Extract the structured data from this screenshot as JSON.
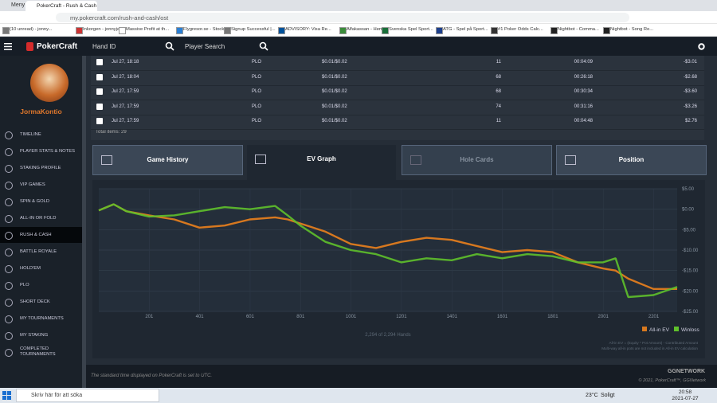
{
  "browser": {
    "menu": "Meny",
    "tab": "PokerCraft - Rush & Cash",
    "url": "my.pokercraft.com/rush-and-cash/ost",
    "bookmarks": [
      "(10 unread) - jonny...",
      "Inkorgen - jonnyjan...",
      "Massive Profit at th...",
      "Flygresor.se - Stock...",
      "Signup Successful |...",
      "ADVISORY: Visa Re...",
      "Alfakassan - Hem",
      "Svenska Spel Sport...",
      "ATG - Spel på Sport...",
      "#1 Poker Odds Calc...",
      "Nightbot - Comma...",
      "Nightbot - Song Re..."
    ]
  },
  "app": {
    "brand": "PokerCraft",
    "hand_id": "Hand ID",
    "player_search": "Player Search",
    "username": "JormaKontio",
    "menu": [
      "TIMELINE",
      "PLAYER STATS & NOTES",
      "STAKING PROFILE",
      "VIP GAMES",
      "SPIN & GOLD",
      "ALL-IN OR FOLD",
      "RUSH & CASH",
      "BATTLE ROYALE",
      "HOLD'EM",
      "PLO",
      "SHORT DECK",
      "MY TOURNAMENTS",
      "MY STAKING",
      "COMPLETED TOURNAMENTS"
    ],
    "table": {
      "rows": [
        [
          "Jul 27, 18:18",
          "PLO",
          "$0.01/$0.02",
          "11",
          "00:04:09",
          "-$3.01"
        ],
        [
          "Jul 27, 18:04",
          "PLO",
          "$0.01/$0.02",
          "68",
          "00:26:18",
          "-$2.68"
        ],
        [
          "Jul 27, 17:59",
          "PLO",
          "$0.01/$0.02",
          "68",
          "00:30:34",
          "-$3.60"
        ],
        [
          "Jul 27, 17:59",
          "PLO",
          "$0.01/$0.02",
          "74",
          "00:31:16",
          "-$3.26"
        ],
        [
          "Jul 27, 17:59",
          "PLO",
          "$0.01/$0.02",
          "11",
          "00:04:48",
          "$2.76"
        ]
      ],
      "total": "Total items: 29"
    },
    "tabs": [
      "Game History",
      "EV Graph",
      "Hole Cards",
      "Position"
    ],
    "footer_note": "The standard time displayed on PokerCraft is set to UTC.",
    "copyright": "© 2021, PokerCraft™, GGNetwork",
    "network": "GGNETWORK"
  },
  "chart_data": {
    "type": "line",
    "x": [
      1,
      60,
      110,
      200,
      300,
      400,
      500,
      600,
      700,
      750,
      800,
      900,
      1000,
      1100,
      1200,
      1300,
      1400,
      1500,
      1600,
      1700,
      1800,
      1900,
      2000,
      2050,
      2100,
      2200,
      2294
    ],
    "series": [
      {
        "name": "All-in EV",
        "color": "#d7781f",
        "values": [
          -0.3,
          1.2,
          -0.5,
          -1.5,
          -2.5,
          -4.5,
          -4,
          -2.5,
          -2,
          -2.5,
          -3.5,
          -5.5,
          -8.5,
          -9.5,
          -8,
          -7,
          -7.5,
          -9,
          -10.5,
          -10,
          -10.5,
          -13,
          -14.5,
          -15,
          -17,
          -19.5,
          -19.5
        ]
      },
      {
        "name": "Winloss",
        "color": "#5fc12b",
        "values": [
          -0.3,
          1.2,
          -0.5,
          -1.8,
          -1.5,
          -0.5,
          0.5,
          0,
          0.8,
          -1.5,
          -4,
          -8,
          -10,
          -11,
          -13,
          -12,
          -12.5,
          -11,
          -12,
          -11,
          -11.5,
          -13,
          -13,
          -12,
          -21.5,
          -21,
          -19
        ]
      }
    ],
    "xlim": [
      1,
      2294
    ],
    "ylim": [
      -25,
      5
    ],
    "xticks": [
      201,
      401,
      601,
      801,
      1001,
      1201,
      1401,
      1601,
      1801,
      2001,
      2201
    ],
    "yticks": [
      {
        "value": 5,
        "label": "$5.00"
      },
      {
        "value": 0,
        "label": "$0.00"
      },
      {
        "value": -5,
        "label": "-$5.00"
      },
      {
        "value": -10,
        "label": "-$10.00"
      },
      {
        "value": -15,
        "label": "-$15.00"
      },
      {
        "value": -20,
        "label": "-$20.00"
      },
      {
        "value": -25,
        "label": "-$25.00"
      }
    ],
    "legend": "bottom-right",
    "hands": "2,294 of 2,294 Hands",
    "notes": [
      "All-in EV = (Equity * Pot Amount) - Contributed Amount",
      "Multi-way all-in pots are not included in All-in EV calculation"
    ]
  },
  "taskbar": {
    "search": "Skriv här för att söka",
    "temperature": "23°C",
    "weather": "Soligt",
    "time": "20:58",
    "date": "2021-07-27"
  }
}
